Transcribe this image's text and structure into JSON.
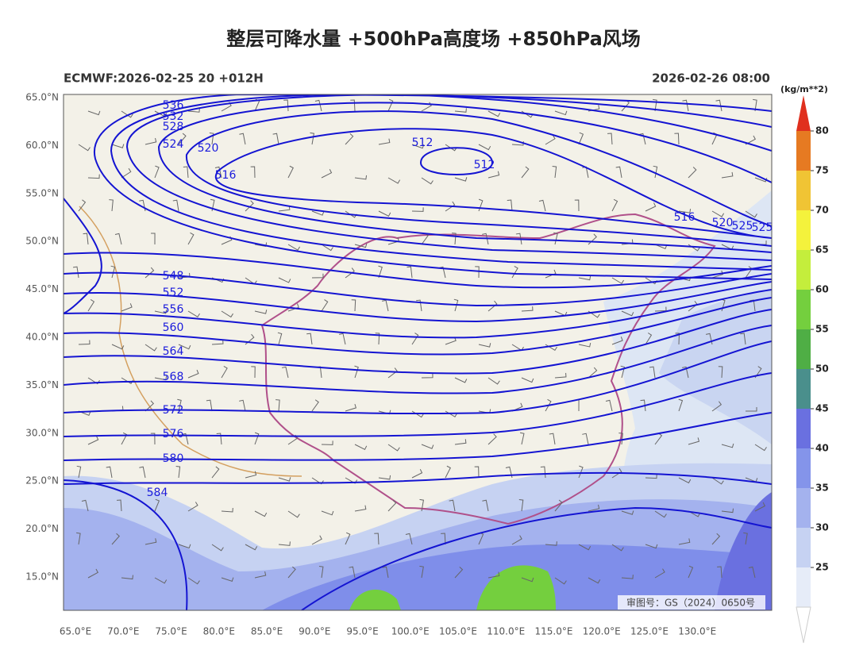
{
  "header": {
    "title": "整层可降水量 +500hPa高度场 +850hPa风场",
    "run_label": "ECMWF:2026-02-25 20 +012H",
    "valid_time": "2026-02-26 08:00"
  },
  "axes": {
    "lat_labels": [
      "65.0°N",
      "60.0°N",
      "55.0°N",
      "50.0°N",
      "45.0°N",
      "40.0°N",
      "35.0°N",
      "30.0°N",
      "25.0°N",
      "20.0°N",
      "15.0°N"
    ],
    "lon_labels": [
      "65.0°E",
      "70.0°E",
      "75.0°E",
      "80.0°E",
      "85.0°E",
      "90.0°E",
      "95.0°E",
      "100.0°E",
      "105.0°E",
      "110.0°E",
      "115.0°E",
      "120.0°E",
      "125.0°E",
      "130.0°E"
    ]
  },
  "contour_labels": [
    "536",
    "532",
    "528",
    "524",
    "520",
    "516",
    "512",
    "512",
    "516",
    "520",
    "525",
    "525",
    "548",
    "552",
    "556",
    "560",
    "564",
    "568",
    "572",
    "576",
    "580",
    "584"
  ],
  "colorbar": {
    "unit": "(kg/m**2)",
    "ticks": [
      25,
      30,
      35,
      40,
      45,
      50,
      55,
      60,
      65,
      70,
      75,
      80
    ],
    "colors": [
      "#e6ecf8",
      "#c6d2f2",
      "#a4b2ee",
      "#8494ea",
      "#6a70e0",
      "#4a8f8c",
      "#4fae45",
      "#74cf3e",
      "#c4ee3c",
      "#f4f23c",
      "#f0c434",
      "#e67a22",
      "#e0301e"
    ]
  },
  "map_number": "审图号：GS（2024）0650号"
}
